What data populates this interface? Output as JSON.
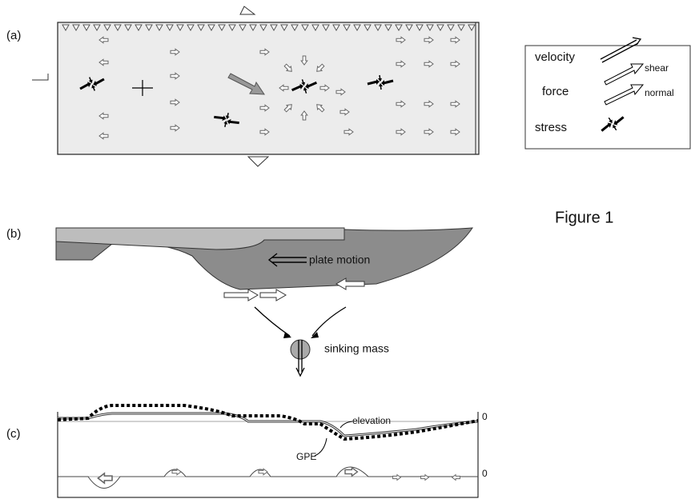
{
  "panels": {
    "a": {
      "label": "(a)"
    },
    "b": {
      "label": "(b)",
      "plate_motion": "plate motion",
      "sinking_mass": "sinking mass"
    },
    "c": {
      "label": "(c)",
      "elevation": "elevation",
      "gpe": "GPE",
      "upper_zero": "0",
      "lower_zero": "0"
    }
  },
  "legend": {
    "velocity": "velocity",
    "force": "force",
    "shear": "shear",
    "normal": "normal",
    "stress": "stress"
  },
  "caption": "Figure 1"
}
